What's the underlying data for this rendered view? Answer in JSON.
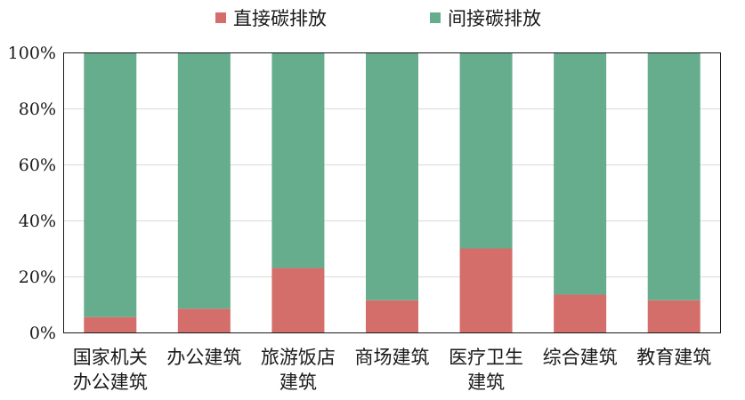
{
  "chart_data": {
    "type": "bar",
    "stacked": true,
    "categories": [
      [
        "国家机关",
        "办公建筑"
      ],
      [
        "办公建筑"
      ],
      [
        "旅游饭店",
        "建筑"
      ],
      [
        "商场建筑"
      ],
      [
        "医疗卫生",
        "建筑"
      ],
      [
        "综合建筑"
      ],
      [
        "教育建筑"
      ]
    ],
    "series": [
      {
        "name": "直接碳排放",
        "color": "#d46e6a",
        "values": [
          5.5,
          8.5,
          23,
          11.5,
          30,
          13.5,
          11.5
        ]
      },
      {
        "name": "间接碳排放",
        "color": "#66ad8e",
        "values": [
          94.5,
          91.5,
          77,
          88.5,
          70,
          86.5,
          88.5
        ]
      }
    ],
    "ylim": [
      0,
      100
    ],
    "yticks": [
      "0%",
      "20%",
      "40%",
      "60%",
      "80%",
      "100%"
    ],
    "ytick_values": [
      0,
      20,
      40,
      60,
      80,
      100
    ],
    "grid": true,
    "legend_position": "top-center",
    "title": "",
    "xlabel": "",
    "ylabel": ""
  }
}
